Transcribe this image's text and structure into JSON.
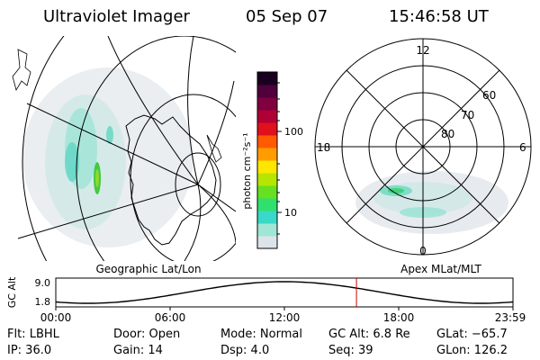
{
  "header": {
    "title": "Ultraviolet Imager",
    "date": "05 Sep 07",
    "time": "15:46:58 UT"
  },
  "colorbar": {
    "unit_label": "photon cm⁻²s⁻¹",
    "ticks": [
      "100",
      "10"
    ],
    "scale": "log",
    "colors": [
      "#dde3ea",
      "#9fe6d5",
      "#39d8c8",
      "#2fe06f",
      "#66e020",
      "#b6e600",
      "#ffe600",
      "#ff9d00",
      "#ff5a00",
      "#e0101c",
      "#b00035",
      "#800040",
      "#50003a",
      "#1a0020"
    ]
  },
  "left_map": {
    "caption": "Geographic Lat/Lon"
  },
  "right_map": {
    "caption": "Apex MLat/MLT",
    "clock_labels": {
      "top": "12",
      "left": "18",
      "right": "6",
      "bottom": "0"
    },
    "lat_labels": [
      "60",
      "70",
      "80"
    ]
  },
  "altitude_plot": {
    "ylabel": "GC Alt",
    "yticks": [
      "9.0",
      "1.8"
    ],
    "xticks": [
      "00:00",
      "06:00",
      "12:00",
      "18:00",
      "23:59"
    ],
    "cursor_time": "15:46:58",
    "cursor_color": "#cc0000"
  },
  "info": {
    "flt": "Flt: LBHL",
    "ip": "IP: 36.0",
    "door": "Door: Open",
    "gain": "Gain: 14",
    "mode": "Mode:  Normal",
    "dsp": "Dsp:     4.0",
    "gcalt": "GC Alt: 6.8 Re",
    "seq": "Seq: 39",
    "glat": "GLat: −65.7",
    "glon": "GLon: 126.2"
  }
}
